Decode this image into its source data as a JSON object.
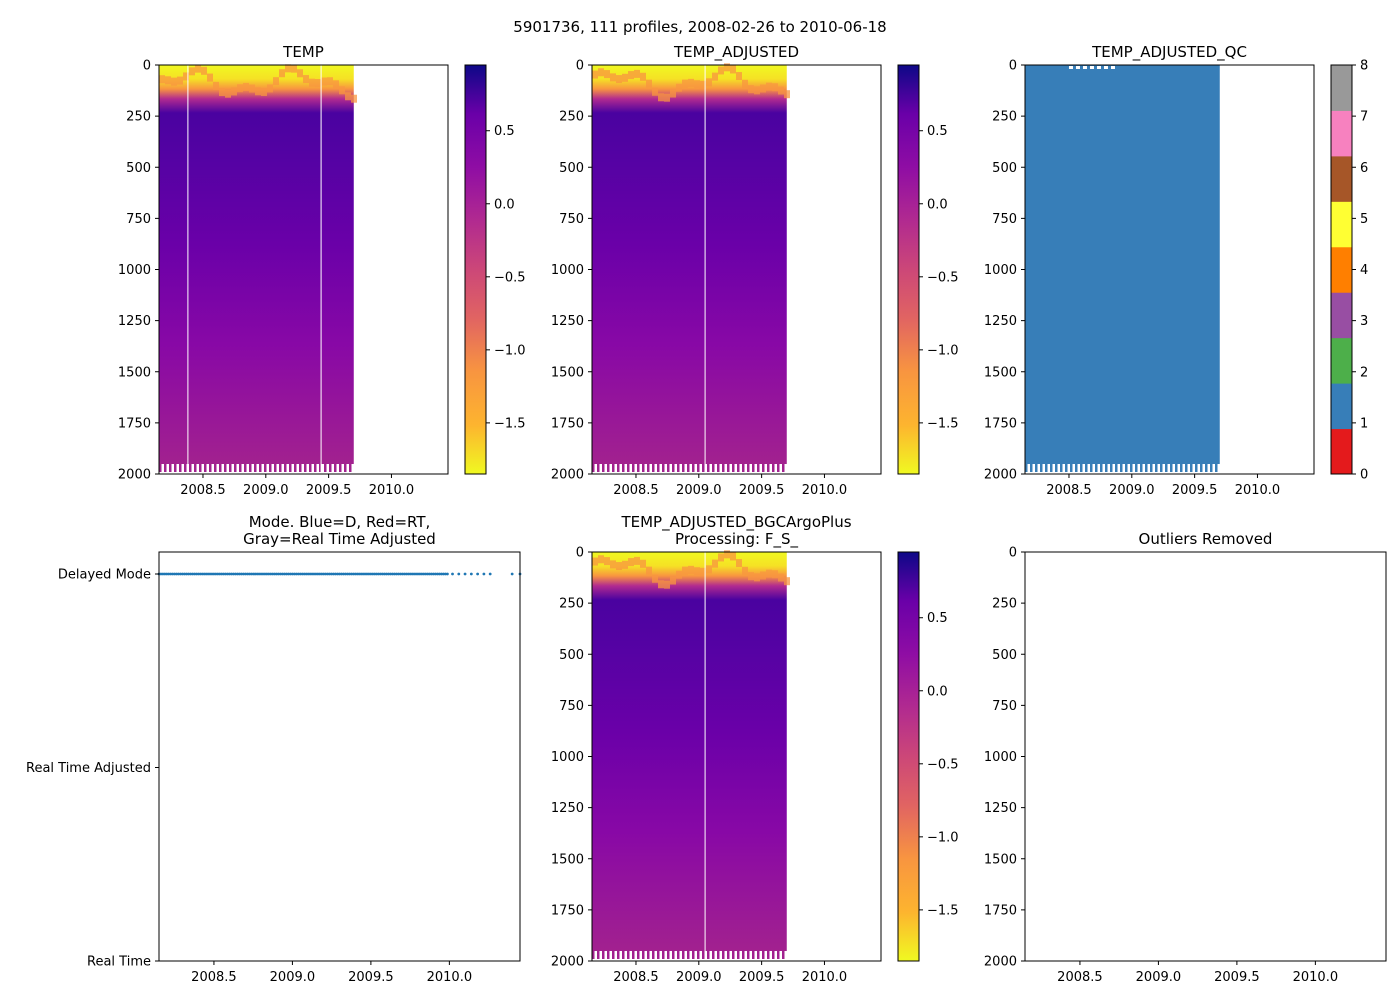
{
  "suptitle": "5901736, 111 profiles, 2008-02-26 to 2010-06-18",
  "chart_data": [
    {
      "id": "temp",
      "type": "heatmap",
      "title": "TEMP",
      "x_ticks": [
        "2008.5",
        "2009.0",
        "2009.5",
        "2010.0"
      ],
      "x_tick_values": [
        2008.5,
        2009.0,
        2009.5,
        2010.0
      ],
      "xlim": [
        2008.15,
        2010.45
      ],
      "y_ticks": [
        "0",
        "250",
        "500",
        "750",
        "1000",
        "1250",
        "1500",
        "1750",
        "2000"
      ],
      "y_tick_values": [
        0,
        250,
        500,
        750,
        1000,
        1250,
        1500,
        1750,
        2000
      ],
      "ylim": [
        2000,
        0
      ],
      "data_x_range": [
        2008.15,
        2009.7
      ],
      "gap_years": [
        2008.38,
        2009.44
      ],
      "colorbar": {
        "cmap": "plasma_r",
        "range": [
          -1.85,
          0.95
        ],
        "ticks": [
          "0.5",
          "0.0",
          "−0.5",
          "−1.0",
          "−1.5"
        ],
        "tick_values": [
          0.5,
          0.0,
          -0.5,
          -1.0,
          -1.5
        ]
      }
    },
    {
      "id": "temp-adjusted",
      "type": "heatmap",
      "title": "TEMP_ADJUSTED",
      "x_ticks": [
        "2008.5",
        "2009.0",
        "2009.5",
        "2010.0"
      ],
      "x_tick_values": [
        2008.5,
        2009.0,
        2009.5,
        2010.0
      ],
      "xlim": [
        2008.15,
        2010.45
      ],
      "y_ticks": [
        "0",
        "250",
        "500",
        "750",
        "1000",
        "1250",
        "1500",
        "1750",
        "2000"
      ],
      "y_tick_values": [
        0,
        250,
        500,
        750,
        1000,
        1250,
        1500,
        1750,
        2000
      ],
      "ylim": [
        2000,
        0
      ],
      "data_x_range": [
        2008.15,
        2009.7
      ],
      "gap_years": [
        2009.05
      ],
      "colorbar": {
        "cmap": "plasma_r",
        "range": [
          -1.85,
          0.95
        ],
        "ticks": [
          "0.5",
          "0.0",
          "−0.5",
          "−1.0",
          "−1.5"
        ],
        "tick_values": [
          0.5,
          0.0,
          -0.5,
          -1.0,
          -1.5
        ]
      }
    },
    {
      "id": "temp-adjusted-qc",
      "type": "heatmap",
      "title": "TEMP_ADJUSTED_QC",
      "x_ticks": [
        "2008.5",
        "2009.0",
        "2009.5",
        "2010.0"
      ],
      "x_tick_values": [
        2008.5,
        2009.0,
        2009.5,
        2010.0
      ],
      "xlim": [
        2008.15,
        2010.45
      ],
      "y_ticks": [
        "0",
        "250",
        "500",
        "750",
        "1000",
        "1250",
        "1500",
        "1750",
        "2000"
      ],
      "y_tick_values": [
        0,
        250,
        500,
        750,
        1000,
        1250,
        1500,
        1750,
        2000
      ],
      "ylim": [
        2000,
        0
      ],
      "data_x_range": [
        2008.15,
        2009.7
      ],
      "fill_color": "#377eb8",
      "colorbar": {
        "cmap": "qc_categorical",
        "range": [
          0,
          8
        ],
        "ticks": [
          "0",
          "1",
          "2",
          "3",
          "4",
          "5",
          "6",
          "7",
          "8"
        ],
        "tick_values": [
          0,
          1,
          2,
          3,
          4,
          5,
          6,
          7,
          8
        ],
        "category_colors": [
          "#e41a1c",
          "#377eb8",
          "#4daf4a",
          "#984ea3",
          "#ff7f00",
          "#ffff33",
          "#a65628",
          "#f781bf",
          "#999999"
        ]
      }
    },
    {
      "id": "mode",
      "type": "scatter",
      "title": "Mode. Blue=D, Red=RT,\nGray=Real Time Adjusted",
      "x_ticks": [
        "2008.5",
        "2009.0",
        "2009.5",
        "2010.0"
      ],
      "x_tick_values": [
        2008.5,
        2009.0,
        2009.5,
        2010.0
      ],
      "xlim": [
        2008.15,
        2010.45
      ],
      "y_categories": [
        "Delayed Mode",
        "Real Time Adjusted",
        "Real Time"
      ],
      "y_values": [
        2,
        1,
        0
      ],
      "point_color": "#1f77b4",
      "series": [
        {
          "name": "Delayed Mode",
          "y": 2,
          "x_ranges": [
            [
              2008.15,
              2010.0
            ]
          ],
          "x_extra": [
            2010.02,
            2010.06,
            2010.1,
            2010.14,
            2010.18,
            2010.22,
            2010.26,
            2010.4,
            2010.45
          ]
        }
      ]
    },
    {
      "id": "temp-adjusted-bgc",
      "type": "heatmap",
      "title": "TEMP_ADJUSTED_BGCArgoPlus\nProcessing: F_S_",
      "x_ticks": [
        "2008.5",
        "2009.0",
        "2009.5",
        "2010.0"
      ],
      "x_tick_values": [
        2008.5,
        2009.0,
        2009.5,
        2010.0
      ],
      "xlim": [
        2008.15,
        2010.45
      ],
      "y_ticks": [
        "0",
        "250",
        "500",
        "750",
        "1000",
        "1250",
        "1500",
        "1750",
        "2000"
      ],
      "y_tick_values": [
        0,
        250,
        500,
        750,
        1000,
        1250,
        1500,
        1750,
        2000
      ],
      "ylim": [
        2000,
        0
      ],
      "data_x_range": [
        2008.15,
        2009.7
      ],
      "gap_years": [
        2009.05
      ],
      "colorbar": {
        "cmap": "plasma_r",
        "range": [
          -1.85,
          0.95
        ],
        "ticks": [
          "0.5",
          "0.0",
          "−0.5",
          "−1.0",
          "−1.5"
        ],
        "tick_values": [
          0.5,
          0.0,
          -0.5,
          -1.0,
          -1.5
        ]
      }
    },
    {
      "id": "outliers",
      "type": "heatmap",
      "title": "Outliers Removed",
      "x_ticks": [
        "2008.5",
        "2009.0",
        "2009.5",
        "2010.0"
      ],
      "x_tick_values": [
        2008.5,
        2009.0,
        2009.5,
        2010.0
      ],
      "xlim": [
        2008.15,
        2010.45
      ],
      "y_ticks": [
        "0",
        "250",
        "500",
        "750",
        "1000",
        "1250",
        "1500",
        "1750",
        "2000"
      ],
      "y_tick_values": [
        0,
        250,
        500,
        750,
        1000,
        1250,
        1500,
        1750,
        2000
      ],
      "ylim": [
        2000,
        0
      ]
    }
  ]
}
